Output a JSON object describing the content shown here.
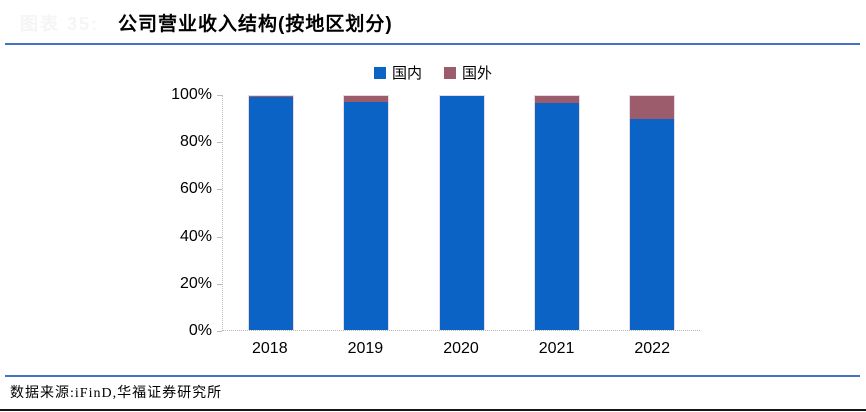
{
  "figure": {
    "faint_label": "图表 35:",
    "title": "公司营业收入结构(按地区划分)",
    "footer": "数据来源:iFinD,华福证券研究所"
  },
  "legend": [
    {
      "label": "国内",
      "color": "#0B63C6"
    },
    {
      "label": "国外",
      "color": "#9C5C6C"
    }
  ],
  "colors": {
    "domestic_bar": "#0B63C6",
    "foreign_bar": "#9C5C6C",
    "header_rule": "#4472C4",
    "footer_rule": "#4472C4",
    "bottom_bar": "#161616",
    "axis_line": "#bdbdbd"
  },
  "chart_data": {
    "type": "bar",
    "stacked": true,
    "title": "公司营业收入结构(按地区划分)",
    "categories": [
      "2018",
      "2019",
      "2020",
      "2021",
      "2022"
    ],
    "series": [
      {
        "name": "国内",
        "color": "#0B63C6",
        "values": [
          99.6,
          97.5,
          100,
          97,
          90
        ]
      },
      {
        "name": "国外",
        "color": "#9C5C6C",
        "values": [
          0.4,
          2.5,
          0,
          3,
          10
        ]
      }
    ],
    "xlabel": "",
    "ylabel": "",
    "ylim": [
      0,
      100
    ],
    "yticks": [
      "0%",
      "20%",
      "40%",
      "60%",
      "80%",
      "100%"
    ],
    "grid": false,
    "legend_position": "top-center"
  }
}
